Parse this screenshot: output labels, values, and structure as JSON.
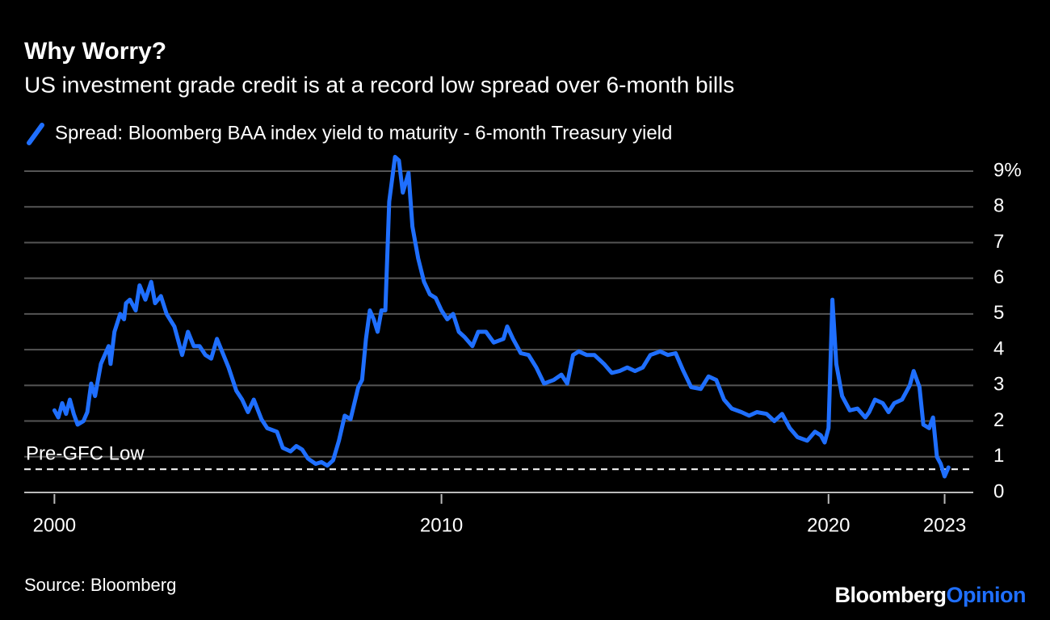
{
  "chart_data": {
    "type": "line",
    "title": "Why Worry?",
    "subtitle": "US investment grade credit is at a record low spread over 6-month bills",
    "source": "Source: Bloomberg",
    "brand": [
      "Bloomberg",
      "Opinion"
    ],
    "x": [
      2000.0,
      2000.1,
      2000.2,
      2000.3,
      2000.4,
      2000.5,
      2000.6,
      2000.75,
      2000.85,
      2000.95,
      2001.05,
      2001.2,
      2001.3,
      2001.4,
      2001.45,
      2001.55,
      2001.7,
      2001.8,
      2001.85,
      2001.95,
      2002.1,
      2002.2,
      2002.35,
      2002.5,
      2002.6,
      2002.75,
      2002.9,
      2003.1,
      2003.3,
      2003.45,
      2003.6,
      2003.75,
      2003.9,
      2004.05,
      2004.2,
      2004.5,
      2004.7,
      2004.85,
      2005.0,
      2005.15,
      2005.35,
      2005.5,
      2005.75,
      2005.9,
      2006.1,
      2006.25,
      2006.4,
      2006.55,
      2006.75,
      2006.9,
      2007.05,
      2007.2,
      2007.35,
      2007.5,
      2007.65,
      2007.85,
      2007.95,
      2008.05,
      2008.15,
      2008.25,
      2008.35,
      2008.45,
      2008.55,
      2008.65,
      2008.8,
      2008.9,
      2009.0,
      2009.15,
      2009.25,
      2009.4,
      2009.55,
      2009.7,
      2009.85,
      2010.0,
      2010.15,
      2010.3,
      2010.45,
      2010.6,
      2010.8,
      2010.95,
      2011.15,
      2011.35,
      2011.6,
      2011.7,
      2011.85,
      2012.05,
      2012.25,
      2012.45,
      2012.65,
      2012.9,
      2013.1,
      2013.25,
      2013.4,
      2013.55,
      2013.75,
      2013.95,
      2014.2,
      2014.4,
      2014.6,
      2014.8,
      2015.0,
      2015.2,
      2015.4,
      2015.65,
      2015.85,
      2016.05,
      2016.25,
      2016.45,
      2016.7,
      2016.9,
      2017.1,
      2017.3,
      2017.5,
      2017.75,
      2017.95,
      2018.15,
      2018.4,
      2018.6,
      2018.8,
      2019.0,
      2019.2,
      2019.45,
      2019.65,
      2019.8,
      2019.9,
      2020.0,
      2020.1,
      2020.2,
      2020.35,
      2020.55,
      2020.75,
      2020.95,
      2021.05,
      2021.2,
      2021.4,
      2021.55,
      2021.7,
      2021.9,
      2022.1,
      2022.2,
      2022.35,
      2022.45,
      2022.6,
      2022.7,
      2022.8,
      2022.9,
      2023.0,
      2023.1
    ],
    "series": [
      {
        "name": "Spread: Bloomberg BAA index yield to maturity - 6-month Treasury yield",
        "color": "#1f6fff",
        "values": [
          2.3,
          2.1,
          2.5,
          2.2,
          2.6,
          2.2,
          1.9,
          2.0,
          2.25,
          3.05,
          2.7,
          3.6,
          3.85,
          4.1,
          3.6,
          4.5,
          5.0,
          4.85,
          5.3,
          5.4,
          5.1,
          5.8,
          5.4,
          5.9,
          5.3,
          5.5,
          5.0,
          4.65,
          3.85,
          4.5,
          4.1,
          4.1,
          3.85,
          3.75,
          4.3,
          3.5,
          2.85,
          2.6,
          2.25,
          2.6,
          2.05,
          1.8,
          1.7,
          1.25,
          1.15,
          1.3,
          1.2,
          0.95,
          0.8,
          0.85,
          0.75,
          0.9,
          1.45,
          2.15,
          2.05,
          2.95,
          3.15,
          4.3,
          5.1,
          4.85,
          4.5,
          5.1,
          5.1,
          8.15,
          9.4,
          9.3,
          8.4,
          8.95,
          7.45,
          6.55,
          5.9,
          5.55,
          5.45,
          5.1,
          4.85,
          5.0,
          4.5,
          4.35,
          4.1,
          4.5,
          4.5,
          4.2,
          4.3,
          4.65,
          4.3,
          3.9,
          3.85,
          3.5,
          3.05,
          3.15,
          3.3,
          3.05,
          3.85,
          3.95,
          3.85,
          3.85,
          3.6,
          3.35,
          3.4,
          3.5,
          3.4,
          3.5,
          3.85,
          3.95,
          3.85,
          3.9,
          3.4,
          2.95,
          2.9,
          3.25,
          3.15,
          2.6,
          2.35,
          2.25,
          2.15,
          2.25,
          2.2,
          2.0,
          2.2,
          1.8,
          1.55,
          1.45,
          1.7,
          1.6,
          1.4,
          1.8,
          5.4,
          3.6,
          2.7,
          2.3,
          2.35,
          2.1,
          2.25,
          2.6,
          2.5,
          2.25,
          2.5,
          2.6,
          3.0,
          3.4,
          2.95,
          1.9,
          1.8,
          2.1,
          1.0,
          0.8,
          0.45,
          0.7
        ]
      }
    ],
    "reference_line": {
      "value": 0.65,
      "label": "Pre-GFC Low"
    },
    "xlim": [
      1999.22,
      2023.74
    ],
    "xticks": [
      2000,
      2010,
      2020,
      2023
    ],
    "ylim": [
      0,
      9.4
    ],
    "yticks": [
      0,
      1,
      2,
      3,
      4,
      5,
      6,
      7,
      8,
      {
        "value": 9,
        "label": "9%"
      }
    ],
    "grid": true
  }
}
